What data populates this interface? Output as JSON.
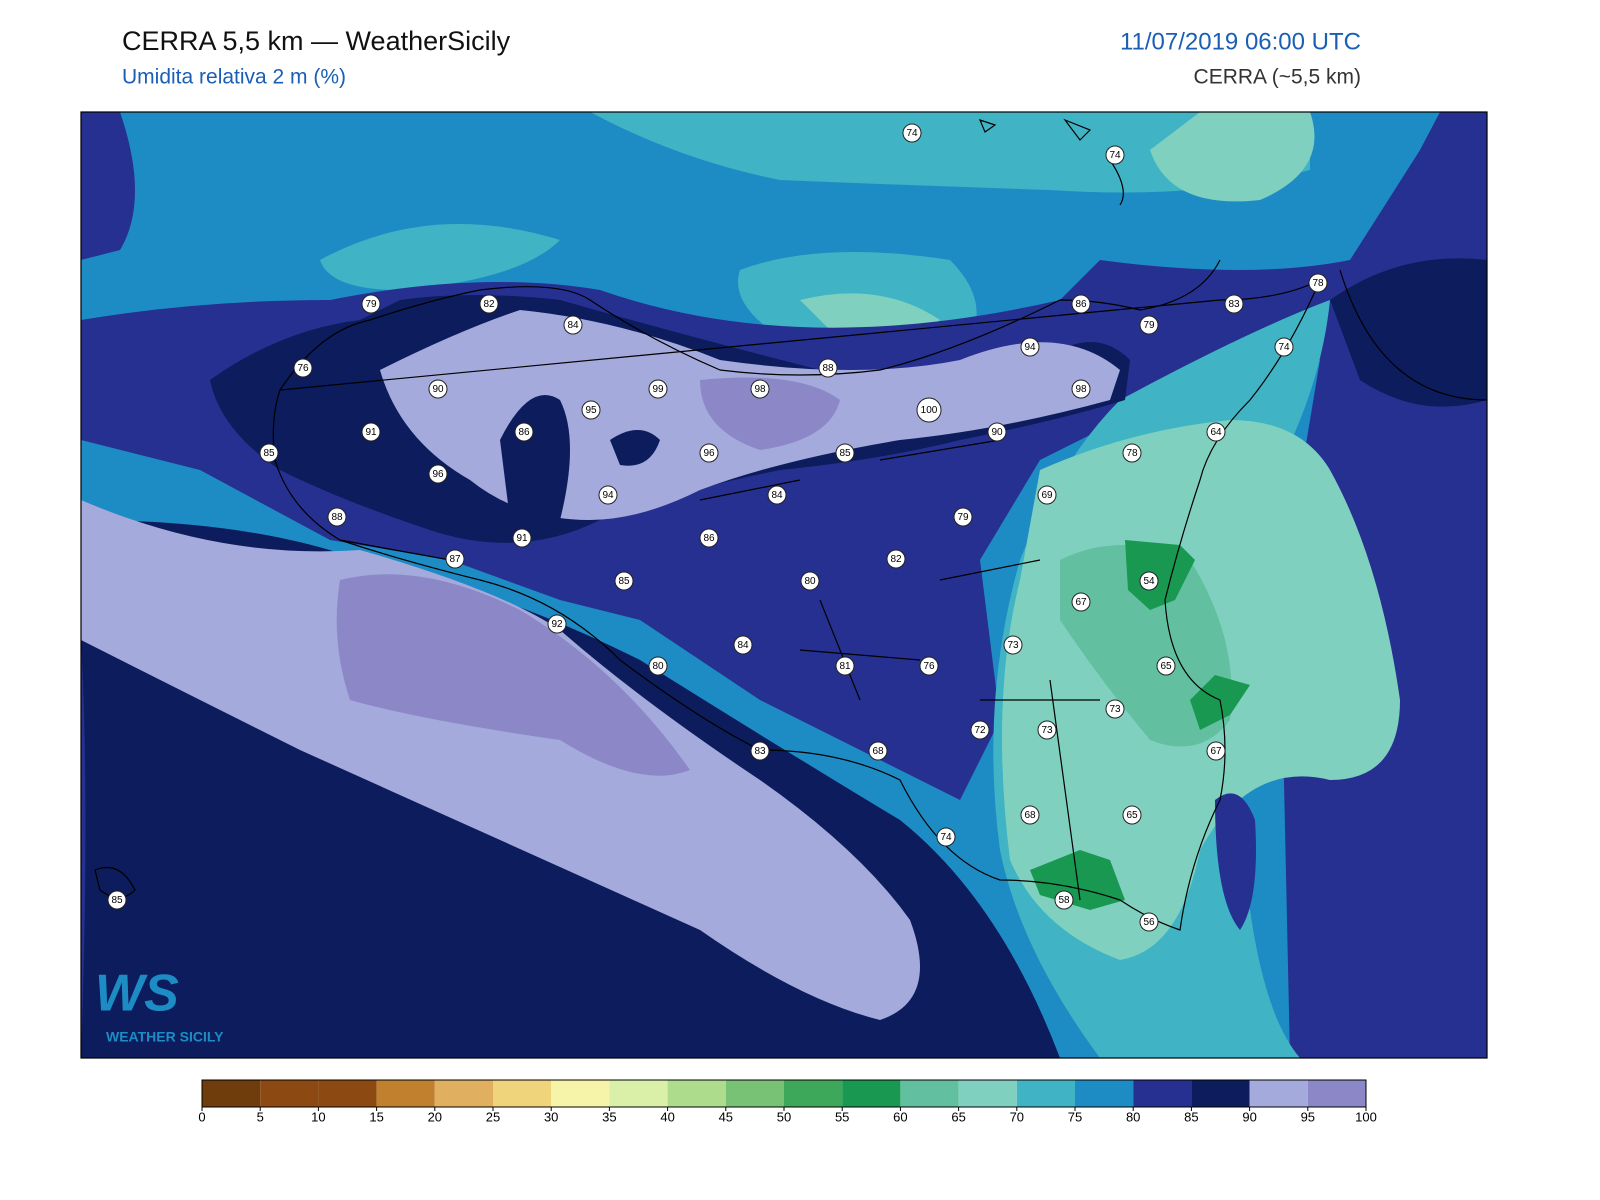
{
  "header": {
    "title": "CERRA 5,5 km — WeatherSicily",
    "subtitle": "Umidita relativa 2 m (%)",
    "datetime": "11/07/2019 06:00 UTC",
    "model": "CERRA (~5,5 km)"
  },
  "stations": [
    74,
    74,
    79,
    82,
    84,
    86,
    79,
    83,
    78,
    76,
    94,
    74,
    90,
    99,
    98,
    88,
    98,
    95,
    100,
    91,
    86,
    90,
    64,
    85,
    96,
    85,
    78,
    96,
    94,
    84,
    69,
    79,
    88,
    91,
    86,
    87,
    82,
    85,
    80,
    54,
    67,
    92,
    84,
    73,
    80,
    81,
    76,
    65,
    72,
    73,
    73,
    83,
    68,
    67,
    68,
    65,
    74,
    58,
    56,
    85
  ],
  "colorbar": {
    "ticks": [
      0,
      5,
      10,
      15,
      20,
      25,
      30,
      35,
      40,
      45,
      50,
      55,
      60,
      65,
      70,
      75,
      80,
      85,
      90,
      95,
      100
    ],
    "colors": [
      "#6f3d0c",
      "#8c4a12",
      "#8c4a12",
      "#c0802e",
      "#e0b060",
      "#f0d47c",
      "#f6f4a8",
      "#daefa8",
      "#acdc8c",
      "#78c276",
      "#3ea85a",
      "#189850",
      "#62c0a0",
      "#80d0c0",
      "#40b4c4",
      "#1e8cc4",
      "#263090",
      "#0c1c5c",
      "#a4aadc",
      "#8c88c8"
    ]
  },
  "logo": {
    "mark": "WS",
    "text": "WEATHER SICILY"
  }
}
